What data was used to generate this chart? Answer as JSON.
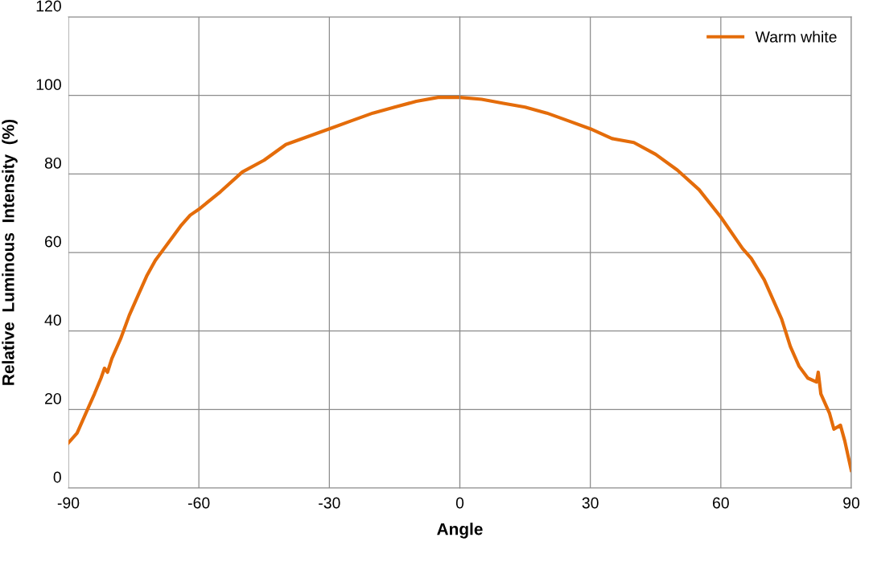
{
  "chart_data": {
    "type": "line",
    "xlabel": "Angle",
    "ylabel": "Relative  Luminous  Intensity  (%)",
    "xlim": [
      -90,
      90
    ],
    "xticks": [
      -90,
      -60,
      -30,
      0,
      30,
      60,
      90
    ],
    "ylim": [
      0,
      120
    ],
    "yticks": [
      0,
      20,
      40,
      60,
      80,
      100,
      120
    ],
    "grid": true,
    "legend": "top right",
    "marker": "none",
    "line_style": "solid",
    "series": [
      {
        "name": "Warm white",
        "color": "#e46c0a",
        "x": [
          -90,
          -88,
          -86,
          -84,
          -82.5,
          -81.7,
          -81,
          -80,
          -78,
          -76,
          -74,
          -72,
          -70,
          -68,
          -66,
          -64,
          -62,
          -60,
          -55,
          -50,
          -45,
          -40,
          -35,
          -30,
          -25,
          -20,
          -15,
          -10,
          -5,
          0,
          5,
          10,
          15,
          20,
          25,
          30,
          35,
          40,
          45,
          50,
          55,
          60,
          65,
          67,
          70,
          72,
          74,
          76,
          78,
          80,
          82,
          82.4,
          83,
          85,
          86,
          87.5,
          88.5,
          90
        ],
        "values": [
          11.5,
          14,
          19,
          24,
          28,
          30.5,
          29.5,
          33,
          38,
          44,
          49,
          54,
          58,
          61,
          64,
          67,
          69.5,
          71,
          75.5,
          80.5,
          83.5,
          87.5,
          89.5,
          91.5,
          93.5,
          95.5,
          97,
          98.5,
          99.5,
          99.5,
          99,
          98,
          97,
          95.5,
          93.5,
          91.5,
          89,
          88,
          85,
          81,
          76,
          69,
          61,
          58.5,
          53,
          48,
          43,
          36,
          31,
          28,
          27,
          29.5,
          24,
          19,
          15,
          16,
          12,
          4.5
        ]
      }
    ]
  }
}
